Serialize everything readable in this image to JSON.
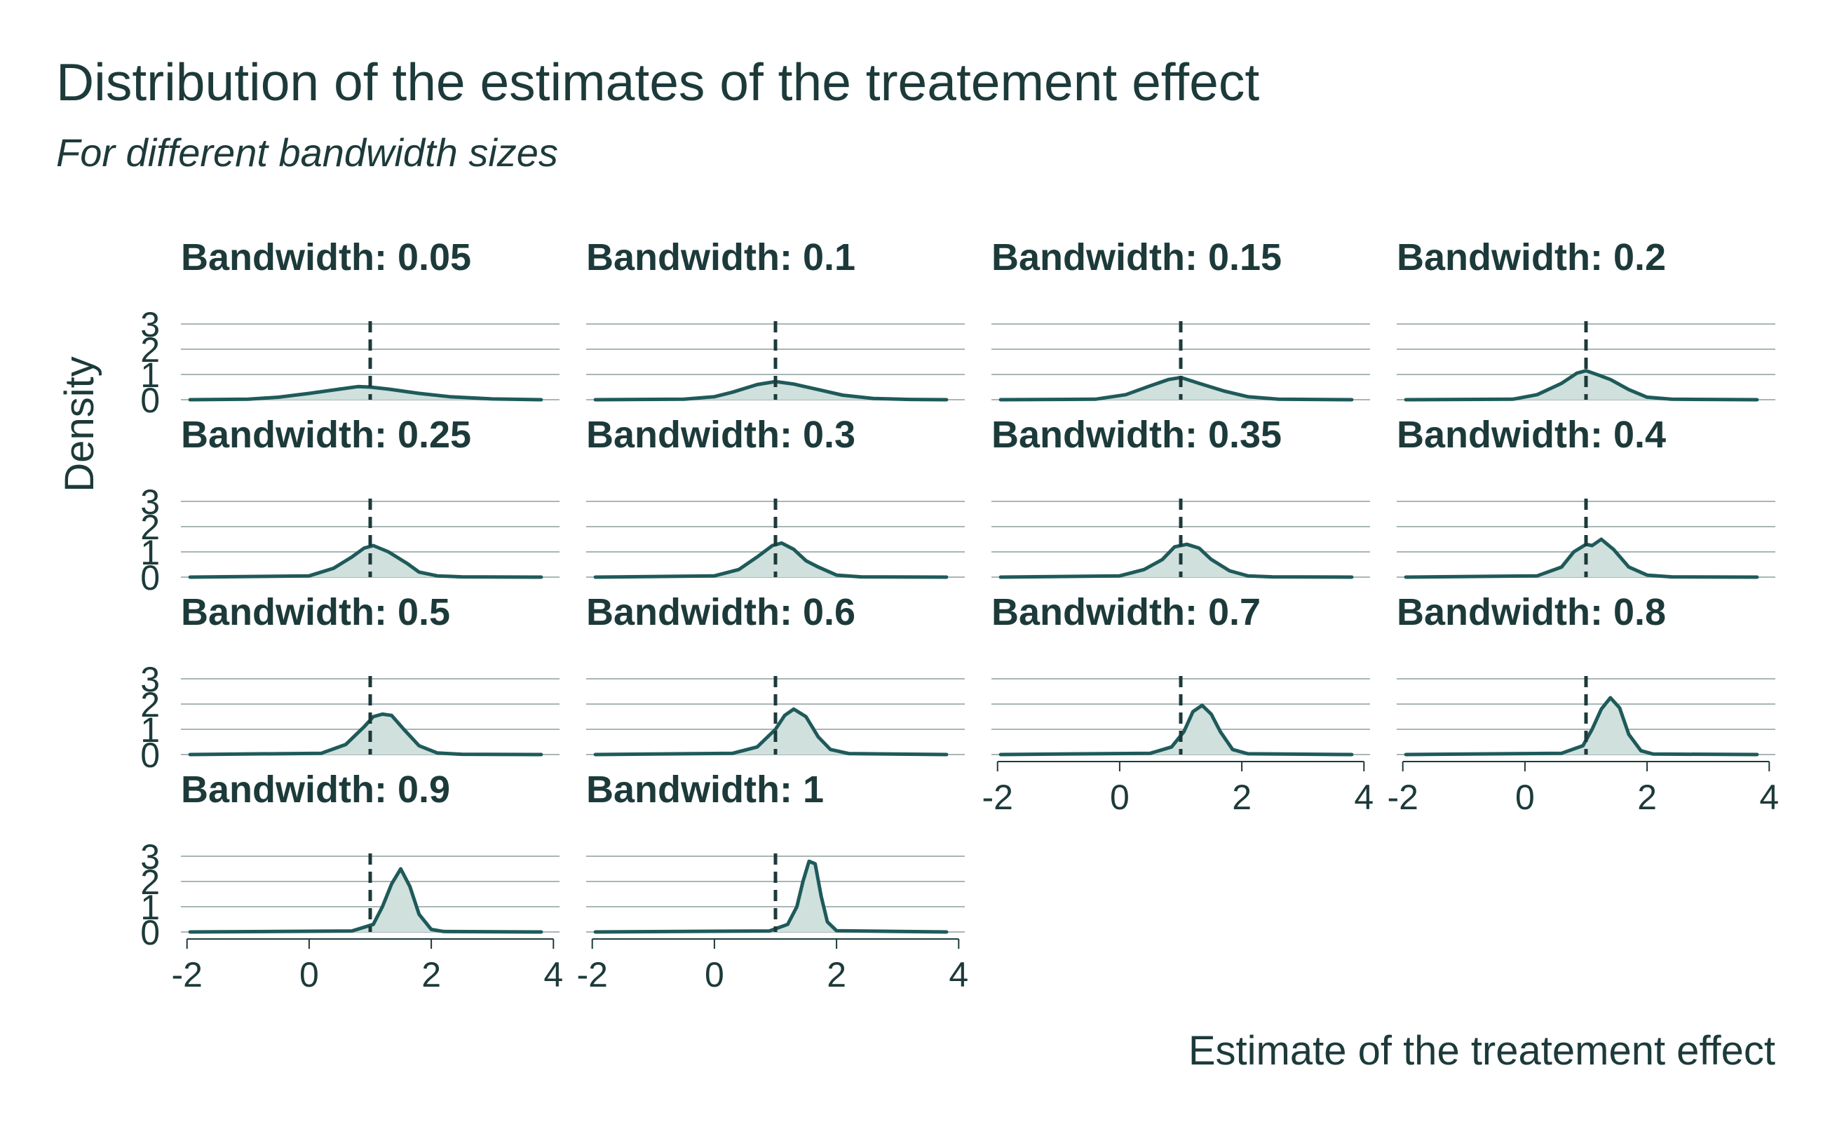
{
  "chart_data": {
    "type": "area",
    "title": "Distribution of the estimates of the treatement effect",
    "subtitle": "For different bandwidth sizes",
    "xlabel": "Estimate of the treatement effect",
    "ylabel": "Density",
    "xlim": [
      -2.1,
      4.1
    ],
    "ylim": [
      0,
      3
    ],
    "x_ticks": [
      -2,
      0,
      2,
      4
    ],
    "y_ticks": [
      0,
      1,
      2,
      3
    ],
    "reference_line_x": 1,
    "grid": "horizontal",
    "colors": {
      "line": "#1f5a5a",
      "fill": "#cfe0dd",
      "grid": "#a9b6b6",
      "text": "#1d3a3a",
      "ref": "#1d3a3a"
    },
    "facets": [
      {
        "label": "Bandwidth: 0.05",
        "x": [
          -1.95,
          -1.0,
          -0.5,
          0,
          0.5,
          0.8,
          1.0,
          1.3,
          1.8,
          2.3,
          3.0,
          3.8
        ],
        "y": [
          0,
          0.02,
          0.1,
          0.25,
          0.42,
          0.52,
          0.5,
          0.42,
          0.25,
          0.12,
          0.03,
          0
        ]
      },
      {
        "label": "Bandwidth: 0.1",
        "x": [
          -1.95,
          -0.5,
          0,
          0.3,
          0.7,
          1.0,
          1.3,
          1.7,
          2.1,
          2.6,
          3.2,
          3.8
        ],
        "y": [
          0,
          0.02,
          0.12,
          0.3,
          0.6,
          0.72,
          0.62,
          0.4,
          0.18,
          0.05,
          0.01,
          0
        ]
      },
      {
        "label": "Bandwidth: 0.15",
        "x": [
          -1.95,
          -0.4,
          0.1,
          0.5,
          0.8,
          1.0,
          1.3,
          1.7,
          2.1,
          2.6,
          3.8
        ],
        "y": [
          0,
          0.02,
          0.2,
          0.55,
          0.8,
          0.88,
          0.65,
          0.35,
          0.12,
          0.02,
          0
        ]
      },
      {
        "label": "Bandwidth: 0.2",
        "x": [
          -1.95,
          -0.2,
          0.2,
          0.6,
          0.85,
          1.0,
          1.2,
          1.4,
          1.7,
          2.0,
          2.4,
          3.8
        ],
        "y": [
          0,
          0.02,
          0.2,
          0.65,
          1.05,
          1.15,
          0.98,
          0.8,
          0.4,
          0.1,
          0.02,
          0
        ]
      },
      {
        "label": "Bandwidth: 0.25",
        "x": [
          -1.95,
          0,
          0.4,
          0.7,
          0.9,
          1.05,
          1.3,
          1.6,
          1.8,
          2.1,
          2.5,
          3.8
        ],
        "y": [
          0,
          0.05,
          0.35,
          0.8,
          1.15,
          1.25,
          1.0,
          0.55,
          0.2,
          0.05,
          0.01,
          0
        ]
      },
      {
        "label": "Bandwidth: 0.3",
        "x": [
          -1.95,
          0,
          0.4,
          0.7,
          0.95,
          1.1,
          1.3,
          1.5,
          1.7,
          2.0,
          2.4,
          3.8
        ],
        "y": [
          0,
          0.05,
          0.3,
          0.8,
          1.25,
          1.35,
          1.1,
          0.65,
          0.4,
          0.08,
          0.01,
          0
        ]
      },
      {
        "label": "Bandwidth: 0.35",
        "x": [
          -1.95,
          0,
          0.4,
          0.7,
          0.9,
          1.1,
          1.3,
          1.5,
          1.8,
          2.1,
          2.5,
          3.8
        ],
        "y": [
          0,
          0.05,
          0.3,
          0.7,
          1.2,
          1.3,
          1.15,
          0.7,
          0.25,
          0.05,
          0.01,
          0
        ]
      },
      {
        "label": "Bandwidth: 0.4",
        "x": [
          -1.95,
          0.2,
          0.6,
          0.8,
          1.0,
          1.1,
          1.25,
          1.45,
          1.7,
          2.0,
          2.4,
          3.8
        ],
        "y": [
          0,
          0.05,
          0.4,
          1.0,
          1.3,
          1.25,
          1.5,
          1.1,
          0.4,
          0.08,
          0.01,
          0
        ]
      },
      {
        "label": "Bandwidth: 0.5",
        "x": [
          -1.95,
          0.2,
          0.6,
          0.9,
          1.05,
          1.2,
          1.35,
          1.55,
          1.8,
          2.1,
          2.5,
          3.8
        ],
        "y": [
          0,
          0.05,
          0.4,
          1.1,
          1.5,
          1.6,
          1.55,
          1.0,
          0.35,
          0.06,
          0.01,
          0
        ]
      },
      {
        "label": "Bandwidth: 0.6",
        "x": [
          -1.95,
          0.3,
          0.7,
          1.0,
          1.15,
          1.3,
          1.5,
          1.7,
          1.9,
          2.2,
          3.8
        ],
        "y": [
          0,
          0.05,
          0.3,
          1.0,
          1.55,
          1.8,
          1.5,
          0.7,
          0.2,
          0.04,
          0
        ]
      },
      {
        "label": "Bandwidth: 0.7",
        "x": [
          -1.95,
          0.5,
          0.85,
          1.05,
          1.2,
          1.35,
          1.5,
          1.65,
          1.85,
          2.1,
          3.8
        ],
        "y": [
          0,
          0.05,
          0.3,
          0.9,
          1.7,
          1.95,
          1.6,
          0.9,
          0.2,
          0.03,
          0
        ]
      },
      {
        "label": "Bandwidth: 0.8",
        "x": [
          -1.95,
          0.6,
          0.95,
          1.1,
          1.25,
          1.4,
          1.55,
          1.7,
          1.9,
          2.1,
          3.8
        ],
        "y": [
          0,
          0.05,
          0.35,
          1.0,
          1.8,
          2.25,
          1.85,
          0.8,
          0.15,
          0.02,
          0
        ]
      },
      {
        "label": "Bandwidth: 0.9",
        "x": [
          -1.95,
          0.7,
          1.05,
          1.2,
          1.35,
          1.5,
          1.65,
          1.8,
          2.0,
          2.2,
          3.8
        ],
        "y": [
          0,
          0.04,
          0.3,
          1.0,
          1.9,
          2.5,
          1.8,
          0.7,
          0.1,
          0.02,
          0
        ]
      },
      {
        "label": "Bandwidth: 1",
        "x": [
          -1.95,
          0.9,
          1.2,
          1.35,
          1.45,
          1.55,
          1.65,
          1.75,
          1.85,
          2.0,
          3.8
        ],
        "y": [
          0,
          0.04,
          0.3,
          1.0,
          2.0,
          2.8,
          2.7,
          1.4,
          0.4,
          0.05,
          0
        ]
      }
    ]
  }
}
